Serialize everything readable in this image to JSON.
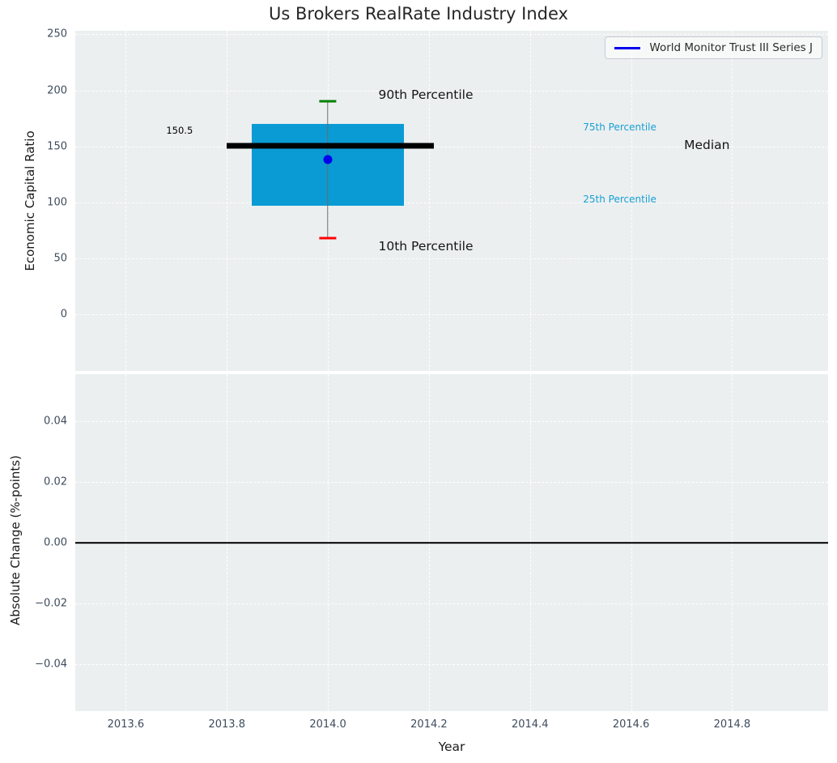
{
  "figure": {
    "title": "Us Brokers RealRate Industry Index",
    "background": "#ffffff",
    "plot_background": "#ebeff0",
    "grid_color": "#ffffff",
    "tick_color": "#3e4c5e"
  },
  "legend": {
    "label": "World Monitor Trust III Series J",
    "line_color": "#0000ee"
  },
  "chart_data": [
    {
      "type": "boxplot",
      "title": "Us Brokers RealRate Industry Index",
      "series_name": "World Monitor Trust III Series J",
      "ylabel": "Economic Capital Ratio",
      "xlim": [
        2013.5,
        2014.99
      ],
      "ylim": [
        -50.5,
        253.2
      ],
      "ytick_values": [
        0,
        50,
        100,
        150,
        200,
        250
      ],
      "ytick_labels": [
        "0",
        "50",
        "100",
        "150",
        "200",
        "250"
      ],
      "grid": true,
      "legend_position": "upper right",
      "box": {
        "x": 2014.0,
        "p10": 68,
        "p25": 97,
        "median": 150.5,
        "mean": 138,
        "p75": 170,
        "p90": 190,
        "box_color": "#0a9bd4",
        "median_color": "#000000",
        "whisker_color": "#6a6a6a",
        "cap_high_color": "#008000",
        "cap_low_color": "#ff0000",
        "mean_dot_color": "#0000ee",
        "box_x_range": [
          2013.85,
          2014.15
        ],
        "median_x_range": [
          2013.8,
          2014.21
        ],
        "cap_x_range": [
          2013.983,
          2014.017
        ]
      },
      "annotations": [
        {
          "name": "median-value-label",
          "text": "150.5",
          "x": 2013.68,
          "y": 164,
          "color": "#000000",
          "size": 11.5
        },
        {
          "name": "p90-label",
          "text": "90th Percentile",
          "x": 2014.1,
          "y": 196,
          "color": "#151515",
          "size": 15.5
        },
        {
          "name": "p10-label",
          "text": "10th Percentile",
          "x": 2014.1,
          "y": 61,
          "color": "#151515",
          "size": 15.5
        },
        {
          "name": "p75-label",
          "text": "75th Percentile",
          "x": 2014.505,
          "y": 167,
          "color": "#189fd4",
          "size": 12
        },
        {
          "name": "p25-label",
          "text": "25th Percentile",
          "x": 2014.505,
          "y": 103,
          "color": "#189fd4",
          "size": 12
        },
        {
          "name": "median-label",
          "text": "Median",
          "x": 2014.705,
          "y": 151.5,
          "color": "#151515",
          "size": 15.5
        }
      ]
    },
    {
      "type": "line",
      "ylabel": "Absolute Change (%-points)",
      "xlabel": "Year",
      "xlim": [
        2013.5,
        2014.99
      ],
      "ylim": [
        -0.0553,
        0.0553
      ],
      "ytick_values": [
        0.04,
        0.02,
        0.0,
        -0.02,
        -0.04
      ],
      "ytick_labels": [
        "0.04",
        "0.02",
        "0.00",
        "−0.02",
        "−0.04"
      ],
      "xtick_values": [
        2013.6,
        2013.8,
        2014.0,
        2014.2,
        2014.4,
        2014.6,
        2014.8
      ],
      "xtick_labels": [
        "2013.6",
        "2013.8",
        "2014.0",
        "2014.2",
        "2014.4",
        "2014.6",
        "2014.8"
      ],
      "grid": true,
      "zero_line": {
        "y": 0.0,
        "color": "#000000"
      }
    }
  ]
}
